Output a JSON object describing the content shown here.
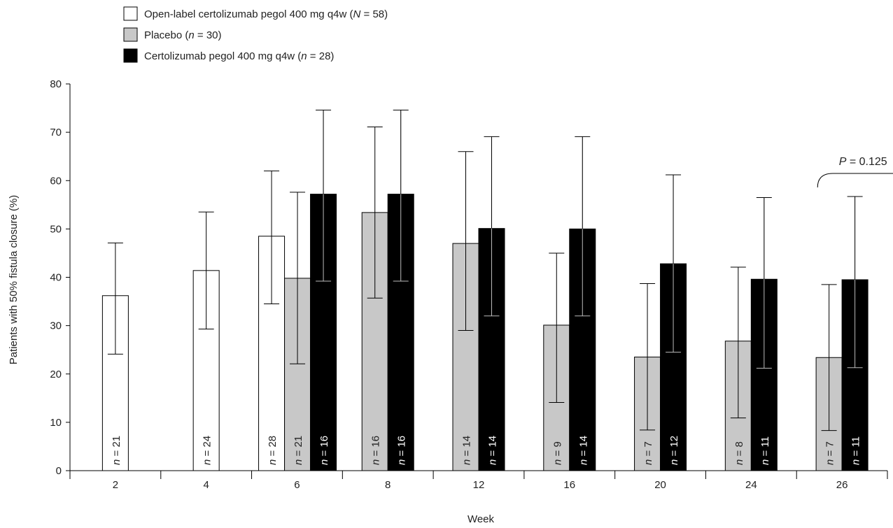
{
  "chart_data": {
    "type": "bar",
    "ylabel": "Patients with 50% fistula closure (%)",
    "xlabel": "Week",
    "ylim": [
      0,
      80
    ],
    "yticks": [
      0,
      10,
      20,
      30,
      40,
      50,
      60,
      70,
      80
    ],
    "categories": [
      "2",
      "4",
      "6",
      "8",
      "12",
      "16",
      "20",
      "24",
      "26"
    ],
    "series": [
      {
        "key": "open_label",
        "name_prefix": "Open-label certolizumab pegol 400 mg q4w (",
        "name_italic": "N",
        "name_suffix": " = 58)",
        "color": "#ffffff",
        "values": [
          36.2,
          41.4,
          48.5,
          null,
          null,
          null,
          null,
          null,
          null
        ],
        "err_low": [
          24.1,
          29.3,
          34.5,
          null,
          null,
          null,
          null,
          null,
          null
        ],
        "err_high": [
          47.1,
          53.5,
          62.0,
          null,
          null,
          null,
          null,
          null,
          null
        ],
        "n_labels": [
          "21",
          "24",
          "28",
          null,
          null,
          null,
          null,
          null,
          null
        ],
        "label_color": "#222222"
      },
      {
        "key": "placebo",
        "name_prefix": "Placebo (",
        "name_italic": "n",
        "name_suffix": " = 30)",
        "color": "#c8c8c8",
        "values": [
          null,
          null,
          39.8,
          53.4,
          47.0,
          30.1,
          23.5,
          26.8,
          23.4
        ],
        "err_low": [
          null,
          null,
          22.1,
          35.7,
          29.0,
          14.1,
          8.4,
          10.9,
          8.3
        ],
        "err_high": [
          null,
          null,
          57.6,
          71.1,
          66.0,
          45.0,
          38.7,
          42.1,
          38.5
        ],
        "n_labels": [
          null,
          null,
          "21",
          "16",
          "14",
          "9",
          "7",
          "8",
          "7"
        ],
        "label_color": "#222222"
      },
      {
        "key": "cdp",
        "name_prefix": "Certolizumab pegol 400 mg q4w (",
        "name_italic": "n",
        "name_suffix": " = 28)",
        "color": "#000000",
        "values": [
          null,
          null,
          57.2,
          57.2,
          50.1,
          50.0,
          42.8,
          39.6,
          39.5
        ],
        "err_low": [
          null,
          null,
          39.2,
          39.2,
          32.0,
          32.0,
          24.5,
          21.2,
          21.3
        ],
        "err_high": [
          null,
          null,
          74.6,
          74.6,
          69.1,
          69.1,
          61.2,
          56.5,
          56.7
        ],
        "n_labels": [
          null,
          null,
          "16",
          "16",
          "14",
          "14",
          "12",
          "11",
          "11"
        ],
        "label_color": "#ffffff"
      }
    ],
    "n_label_prefix": "n",
    "n_label_eq": " = ",
    "annotation": {
      "category": "26",
      "text_italic": "P",
      "text_rest": " = 0.125"
    }
  }
}
